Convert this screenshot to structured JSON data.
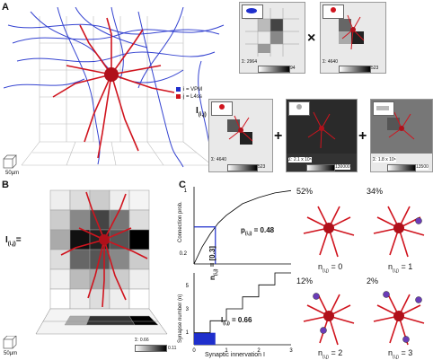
{
  "panels": {
    "a": "A",
    "b": "B",
    "c": "C"
  },
  "panel_a": {
    "legend_i": "i = VPM",
    "legend_j": "j = L4ss",
    "legend_i_color": "#1f2fcc",
    "legend_j_color": "#d0141e",
    "lhs_main": "I",
    "lhs_sub": "(i,j)",
    "scale": "50µm",
    "mini_top_left": {
      "sum": "Σ: 2964",
      "max": "94"
    },
    "mini_top_right": {
      "sum": "Σ: 4640",
      "max": "523"
    },
    "mini_bot_1": {
      "sum": "Σ: 4640",
      "max": "523"
    },
    "mini_bot_2": {
      "sum": "Σ: 2.1 x 10⁵",
      "max": "130000"
    },
    "mini_bot_3": {
      "sum": "Σ: 1.8 x 10⁶",
      "max": "13500"
    },
    "op_times": "×",
    "op_plus1": "+",
    "op_plus2": "+"
  },
  "panel_b": {
    "lhs_main": "I",
    "lhs_sub": "(i,j)",
    "equals": "=",
    "sum": "Σ: 0.66",
    "max": "0.11",
    "scale": "50µm"
  },
  "panel_c": {
    "top_ylabel": "Connection prob.",
    "bot_ylabel": "Synapse number (n)",
    "xlabel": "Synaptic innervation I",
    "p_label": "p",
    "p_sub": "(i,j)",
    "p_value": "= 0.48",
    "n_label": "n",
    "n_sub": "(i,j)",
    "n_value": "= [0.3]",
    "i_label": "I",
    "i_sub": "(i,j)",
    "i_value": "= 0.66",
    "neurons": [
      {
        "pct": "52%",
        "n": "n",
        "sub": "(i,j)",
        "eq": "= 0"
      },
      {
        "pct": "34%",
        "n": "n",
        "sub": "(i,j)",
        "eq": "= 1"
      },
      {
        "pct": "12%",
        "n": "n",
        "sub": "(i,j)",
        "eq": "= 2"
      },
      {
        "pct": "2%",
        "n": "n",
        "sub": "(i,j)",
        "eq": "= 3"
      }
    ]
  },
  "chart_data": [
    {
      "type": "line",
      "title": "",
      "xlabel": "",
      "ylabel": "Connection prob.",
      "xlim": [
        0,
        3
      ],
      "ylim": [
        0,
        1
      ],
      "y_ticks": [
        "0.2",
        "1"
      ],
      "series": [
        {
          "x": [
            0,
            0.25,
            0.5,
            0.75,
            1.0,
            1.5,
            2.0,
            2.5,
            3.0
          ],
          "values": [
            0,
            0.22,
            0.39,
            0.53,
            0.63,
            0.78,
            0.86,
            0.92,
            0.95
          ]
        }
      ],
      "marker": {
        "x": 0.66,
        "y": 0.48
      }
    },
    {
      "type": "line",
      "title": "",
      "xlabel": "Synaptic innervation I",
      "ylabel": "Synapse number (n)",
      "xlim": [
        0,
        3
      ],
      "ylim": [
        0,
        6
      ],
      "x_ticks": [
        "0",
        "1",
        "2",
        "3"
      ],
      "y_ticks": [
        "1",
        "3",
        "5"
      ],
      "series": [
        {
          "x": [
            0,
            0.5,
            0.5,
            1.0,
            1.0,
            1.5,
            1.5,
            2.0,
            2.0,
            2.5,
            2.5,
            3.0
          ],
          "values": [
            1,
            1,
            2,
            2,
            3,
            3,
            4,
            4,
            5,
            5,
            6,
            6
          ]
        }
      ],
      "marker": {
        "x": 0.66,
        "y": 0.3
      }
    }
  ]
}
